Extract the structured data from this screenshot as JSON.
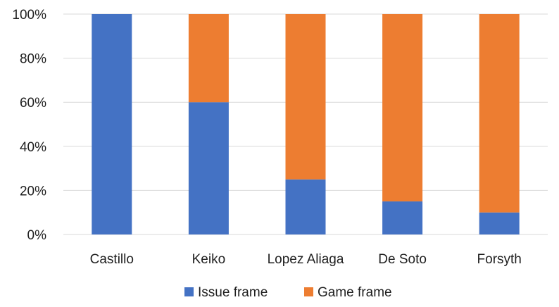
{
  "chart_data": {
    "type": "bar",
    "stacked": true,
    "normalized": true,
    "categories": [
      "Castillo",
      "Keiko",
      "Lopez Aliaga",
      "De Soto",
      "Forsyth"
    ],
    "series": [
      {
        "name": "Issue frame",
        "values": [
          100,
          60,
          25,
          15,
          10
        ],
        "color": "#4472c4"
      },
      {
        "name": "Game frame",
        "values": [
          0,
          40,
          75,
          85,
          90
        ],
        "color": "#ed7d31"
      }
    ],
    "yticks": [
      "0%",
      "20%",
      "40%",
      "60%",
      "80%",
      "100%"
    ],
    "ylim": [
      0,
      100
    ],
    "grid": true,
    "legend": "bottom"
  }
}
